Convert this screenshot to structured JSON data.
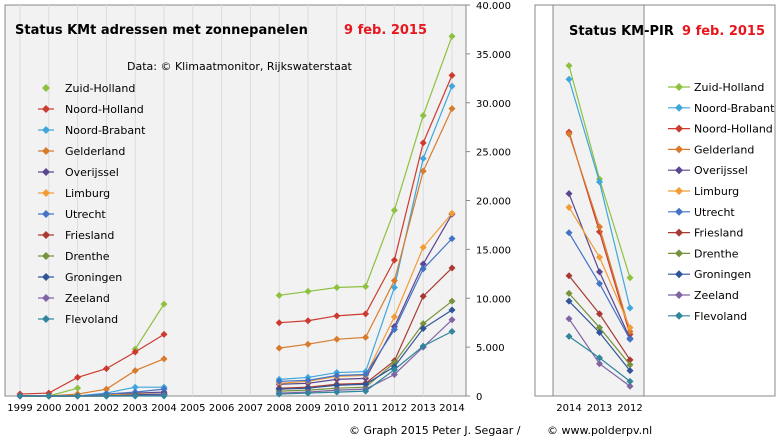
{
  "footer": {
    "credit_left": "© Graph 2015 Peter J. Segaar /",
    "credit_right": "© www.polderpv.nl"
  },
  "chart_data": [
    {
      "type": "line",
      "title": "Status KMt adressen met zonnepanelen",
      "title_date": "9 feb. 2015",
      "subtitle": "Data: © Klimaatmonitor, Rijkswaterstaat",
      "x": [
        "1999",
        "2000",
        "2001",
        "2002",
        "2003",
        "2004",
        "2005",
        "2006",
        "2007",
        "2008",
        "2009",
        "2010",
        "2011",
        "2012",
        "2013",
        "2014"
      ],
      "ylim": [
        0,
        40000
      ],
      "yticks": [
        "0",
        "5.000",
        "10.000",
        "15.000",
        "20.000",
        "25.000",
        "30.000",
        "35.000",
        "40.000"
      ],
      "y_axis_position": "right",
      "gaps": [
        "2005",
        "2006",
        "2007"
      ],
      "legend_position": "left",
      "series": [
        {
          "name": "Zuid-Holland",
          "color": "#8dc13f",
          "values": [
            0,
            0,
            800,
            null,
            4800,
            9400,
            null,
            null,
            null,
            10300,
            10700,
            11100,
            11200,
            19000,
            28700,
            36800
          ]
        },
        {
          "name": "Noord-Holland",
          "color": "#cc3b2f",
          "values": [
            200,
            300,
            1900,
            2800,
            4500,
            6300,
            null,
            null,
            null,
            7500,
            7700,
            8200,
            8400,
            13900,
            25900,
            32800
          ]
        },
        {
          "name": "Noord-Brabant",
          "color": "#3fa7dc",
          "values": [
            0,
            0,
            0,
            300,
            900,
            900,
            null,
            null,
            null,
            1700,
            1900,
            2400,
            2500,
            11100,
            24300,
            31700
          ]
        },
        {
          "name": "Gelderland",
          "color": "#d77b2c",
          "values": [
            0,
            0,
            200,
            700,
            2600,
            3800,
            null,
            null,
            null,
            4900,
            5300,
            5800,
            6000,
            11800,
            23000,
            29400
          ]
        },
        {
          "name": "Overijssel",
          "color": "#5a4590",
          "values": [
            0,
            0,
            0,
            100,
            300,
            400,
            null,
            null,
            null,
            1200,
            1300,
            1700,
            1800,
            7100,
            13500,
            18600
          ]
        },
        {
          "name": "Limburg",
          "color": "#f39b35",
          "values": [
            0,
            0,
            0,
            100,
            200,
            200,
            null,
            null,
            null,
            1300,
            1500,
            2000,
            2100,
            8100,
            15200,
            18700
          ]
        },
        {
          "name": "Utrecht",
          "color": "#4472c4",
          "values": [
            0,
            0,
            0,
            200,
            400,
            700,
            null,
            null,
            null,
            1500,
            1600,
            2100,
            2200,
            6800,
            13000,
            16100
          ]
        },
        {
          "name": "Friesland",
          "color": "#a83a33",
          "values": [
            0,
            0,
            0,
            0,
            100,
            200,
            null,
            null,
            null,
            800,
            900,
            1200,
            1300,
            3600,
            10200,
            13100
          ]
        },
        {
          "name": "Drenthe",
          "color": "#76923c",
          "values": [
            0,
            0,
            0,
            0,
            100,
            100,
            null,
            null,
            null,
            500,
            600,
            800,
            900,
            3400,
            7400,
            9700
          ]
        },
        {
          "name": "Groningen",
          "color": "#2f5597",
          "values": [
            0,
            0,
            0,
            0,
            100,
            200,
            null,
            null,
            null,
            700,
            800,
            1100,
            1200,
            3000,
            6900,
            8800
          ]
        },
        {
          "name": "Zeeland",
          "color": "#7f63a3",
          "values": [
            0,
            0,
            0,
            0,
            0,
            100,
            null,
            null,
            null,
            300,
            400,
            600,
            700,
            2200,
            5000,
            7800
          ]
        },
        {
          "name": "Flevoland",
          "color": "#31859c",
          "values": [
            0,
            0,
            0,
            0,
            0,
            0,
            null,
            null,
            null,
            200,
            300,
            400,
            500,
            2700,
            5100,
            6600
          ]
        }
      ]
    },
    {
      "type": "line",
      "title": "Status KM-PIR",
      "title_date": "9 feb. 2015",
      "x": [
        "2014",
        "2013",
        "2012"
      ],
      "legend_position": "right",
      "series": [
        {
          "name": "Zuid-Holland",
          "color": "#8dc13f",
          "values": [
            33800,
            22200,
            12100
          ]
        },
        {
          "name": "Noord-Brabant",
          "color": "#3fa7dc",
          "values": [
            32400,
            21900,
            9000
          ]
        },
        {
          "name": "Noord-Holland",
          "color": "#cc3b2f",
          "values": [
            27000,
            16800,
            6300
          ]
        },
        {
          "name": "Gelderland",
          "color": "#d77b2c",
          "values": [
            26800,
            17300,
            6600
          ]
        },
        {
          "name": "Overijssel",
          "color": "#5a4590",
          "values": [
            20700,
            12700,
            5900
          ]
        },
        {
          "name": "Limburg",
          "color": "#f39b35",
          "values": [
            19300,
            14200,
            7000
          ]
        },
        {
          "name": "Utrecht",
          "color": "#4472c4",
          "values": [
            16700,
            11500,
            5800
          ]
        },
        {
          "name": "Friesland",
          "color": "#a83a33",
          "values": [
            12300,
            8400,
            3700
          ]
        },
        {
          "name": "Drenthe",
          "color": "#76923c",
          "values": [
            10500,
            7000,
            3200
          ]
        },
        {
          "name": "Groningen",
          "color": "#2f5597",
          "values": [
            9700,
            6500,
            2600
          ]
        },
        {
          "name": "Zeeland",
          "color": "#7f63a3",
          "values": [
            7900,
            3300,
            1000
          ]
        },
        {
          "name": "Flevoland",
          "color": "#31859c",
          "values": [
            6100,
            3900,
            1500
          ]
        }
      ]
    }
  ]
}
